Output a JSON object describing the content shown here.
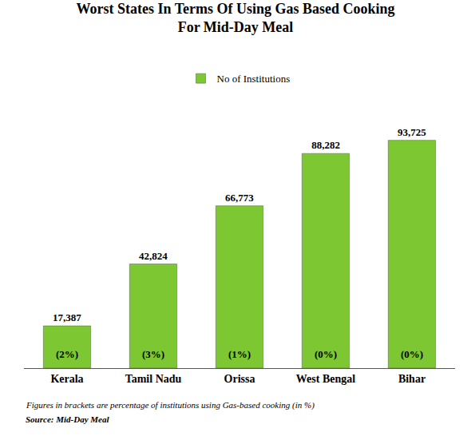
{
  "chart_data": {
    "type": "bar",
    "title": "Worst States In Terms Of Using Gas Based Cooking\nFor Mid-Day Meal",
    "categories": [
      "Kerala",
      "Tamil Nadu",
      "Orissa",
      "West Bengal",
      "Bihar"
    ],
    "series": [
      {
        "name": "No of Institutions",
        "color": "#7dc832",
        "values": [
          17387,
          42824,
          66773,
          88282,
          93725
        ],
        "value_labels": [
          "17,387",
          "42,824",
          "66,773",
          "88,282",
          "93,725"
        ],
        "annotations": [
          "(2%)",
          "(3%)",
          "(1%)",
          "(0%)",
          "(0%)"
        ]
      }
    ],
    "annotations": [
      "Figures in brackets are percentage of institutions using Gas-based cooking (in %)",
      "Source: Mid-Day Meal"
    ],
    "ylim": [
      0,
      112000
    ],
    "data_labels": true,
    "tick_labels": "x",
    "grid": false,
    "legend": "top"
  }
}
